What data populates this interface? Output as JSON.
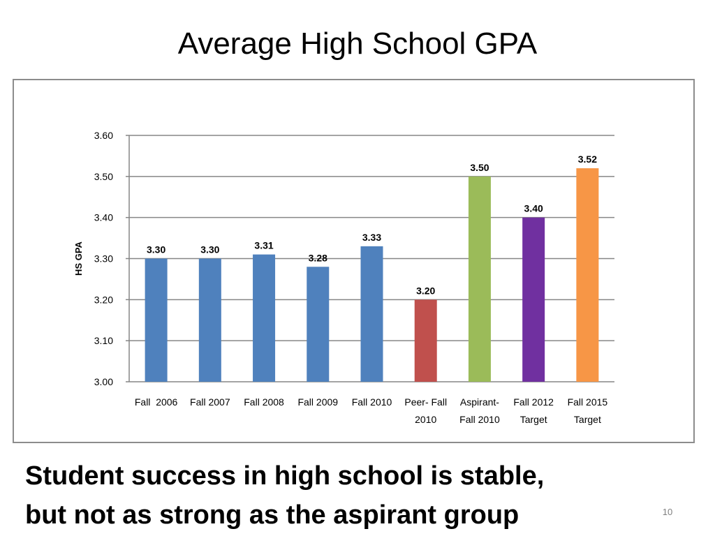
{
  "slide": {
    "title": "Average High School GPA",
    "footer_lines": [
      "Student success in high school is stable,",
      "but not as strong as the aspirant group"
    ],
    "page_number": "10"
  },
  "chart_data": {
    "type": "bar",
    "title": "",
    "xlabel": "",
    "ylabel": "HS GPA",
    "ylim": [
      3.0,
      3.6
    ],
    "yticks": [
      "3.00",
      "3.10",
      "3.20",
      "3.30",
      "3.40",
      "3.50",
      "3.60"
    ],
    "grid": true,
    "legend": "none",
    "categories": [
      [
        "Fall  2006"
      ],
      [
        "Fall 2007"
      ],
      [
        "Fall 2008"
      ],
      [
        "Fall 2009"
      ],
      [
        "Fall 2010"
      ],
      [
        "Peer- Fall",
        "2010"
      ],
      [
        "Aspirant-",
        "Fall 2010"
      ],
      [
        "Fall 2012",
        "Target"
      ],
      [
        "Fall 2015",
        "Target"
      ]
    ],
    "values": [
      3.3,
      3.3,
      3.31,
      3.28,
      3.33,
      3.2,
      3.5,
      3.4,
      3.52
    ],
    "data_labels": [
      "3.30",
      "3.30",
      "3.31",
      "3.28",
      "3.33",
      "3.20",
      "3.50",
      "3.40",
      "3.52"
    ],
    "colors": [
      "#4f81bd",
      "#4f81bd",
      "#4f81bd",
      "#4f81bd",
      "#4f81bd",
      "#c0504d",
      "#9bbb59",
      "#7030a0",
      "#f79646"
    ]
  }
}
